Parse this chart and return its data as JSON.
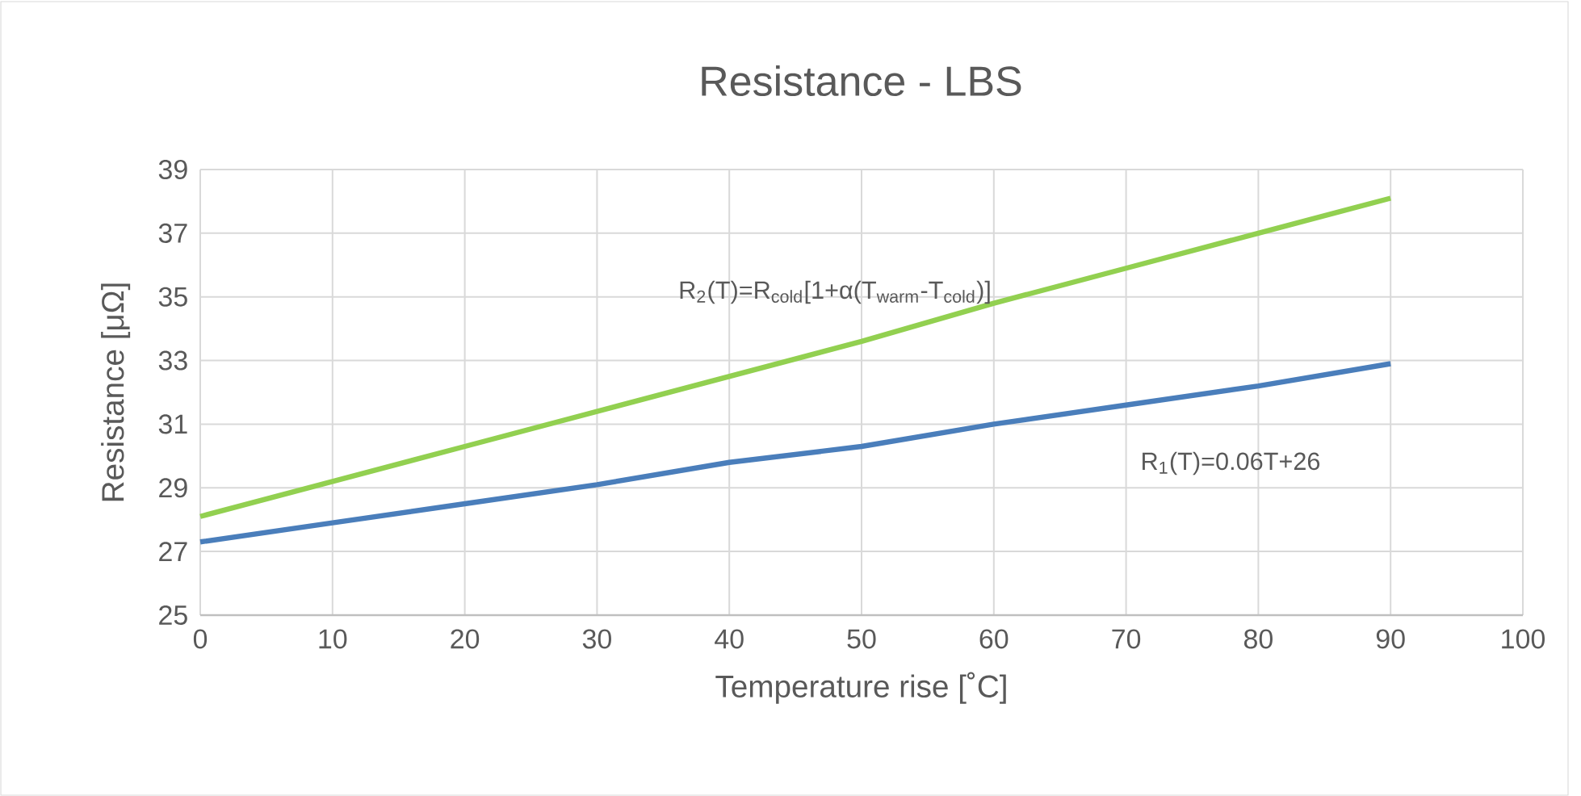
{
  "chart_data": {
    "type": "line",
    "title": "Resistance - LBS",
    "xlabel": "Temperature rise [˚C]",
    "ylabel": "Resistance [μΩ]",
    "x": [
      0,
      10,
      20,
      30,
      40,
      50,
      60,
      70,
      80,
      90
    ],
    "series": [
      {
        "color": "#4a7ebb",
        "values": [
          27.3,
          27.9,
          28.5,
          29.1,
          29.8,
          30.3,
          31.0,
          31.6,
          32.2,
          32.9
        ]
      },
      {
        "color": "#92d050",
        "values": [
          28.1,
          29.2,
          30.3,
          31.4,
          32.5,
          33.6,
          34.8,
          35.9,
          37.0,
          38.1
        ]
      }
    ],
    "annotations": [
      "R$_{2}$(T)=R$_{cold}$[1+α(T$_{warm}$-T$_{cold}$)]",
      "R$_{1}$(T)=0.06T+26"
    ],
    "xlim": [
      0,
      100
    ],
    "xticks": [
      0,
      10,
      20,
      30,
      40,
      50,
      60,
      70,
      80,
      90,
      100
    ],
    "ylim": [
      25,
      39
    ],
    "yticks": [
      25,
      27,
      29,
      31,
      33,
      35,
      37,
      39
    ],
    "grid": true,
    "marker": "none",
    "line_style": "solid"
  }
}
